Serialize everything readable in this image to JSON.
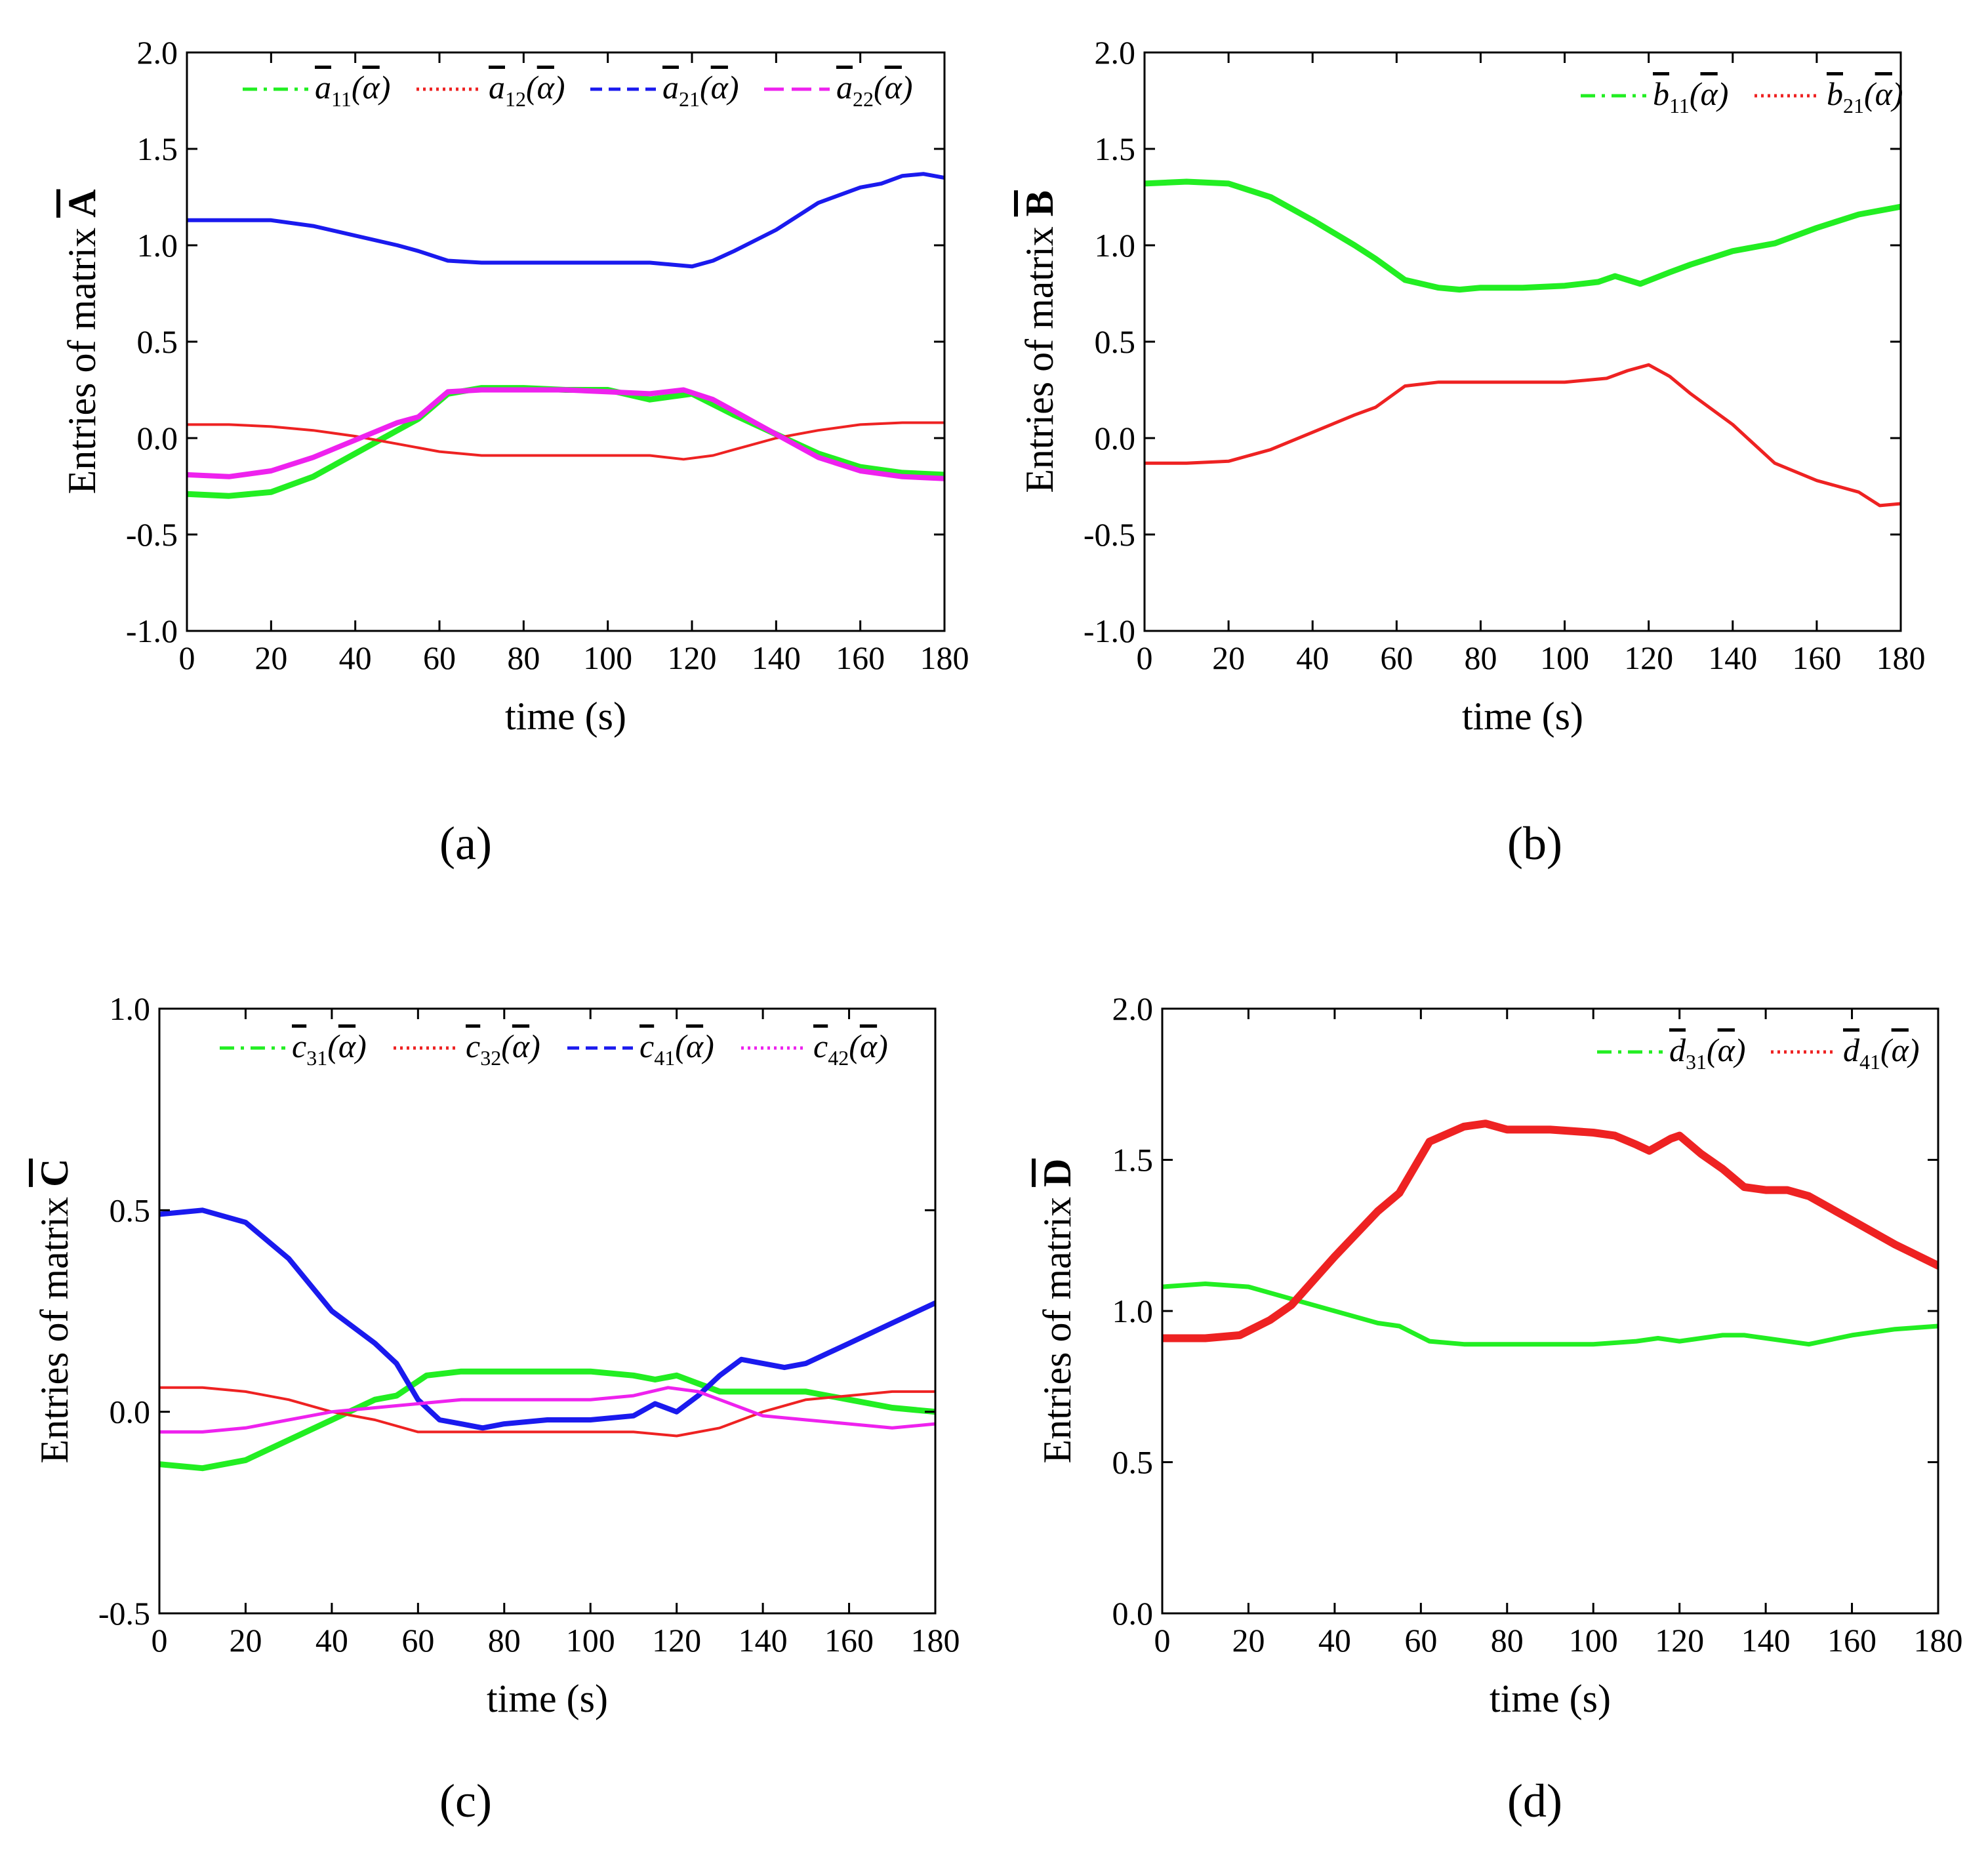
{
  "figure": {
    "panels": [
      "(a)",
      "(b)",
      "(c)",
      "(d)"
    ]
  },
  "colors": {
    "green": "#22ee22",
    "red": "#ee2222",
    "blue": "#1a1aee",
    "magenta": "#ee22ee"
  },
  "chart_data": [
    {
      "id": "a",
      "type": "line",
      "panel_label": "(a)",
      "xlabel": "time (s)",
      "ylabel": "Entries of matrix A",
      "ylabel_prefix": "Entries of matrix ",
      "ylabel_matrix": "A",
      "xlim": [
        0,
        180
      ],
      "ylim": [
        -1.0,
        2.0
      ],
      "xticks": [
        0,
        20,
        40,
        60,
        80,
        100,
        120,
        140,
        160,
        180
      ],
      "yticks": [
        -1.0,
        -0.5,
        0.0,
        0.5,
        1.0,
        1.5,
        2.0
      ],
      "ytick_labels": [
        "-1.0",
        "-0.5",
        "0.0",
        "0.5",
        "1.0",
        "1.5",
        "2.0"
      ],
      "legend_position": "top",
      "series": [
        {
          "name": "a11(α)",
          "sym": "a",
          "sub": "11",
          "color": "green",
          "dash": "dashdot",
          "width": 9,
          "x": [
            0,
            10,
            20,
            30,
            40,
            50,
            55,
            62,
            70,
            80,
            90,
            100,
            110,
            120,
            130,
            140,
            150,
            160,
            170,
            180
          ],
          "y": [
            -0.29,
            -0.3,
            -0.28,
            -0.2,
            -0.08,
            0.04,
            0.1,
            0.23,
            0.26,
            0.26,
            0.25,
            0.25,
            0.2,
            0.23,
            0.12,
            0.02,
            -0.08,
            -0.15,
            -0.18,
            -0.19
          ]
        },
        {
          "name": "a12(α)",
          "sym": "a",
          "sub": "12",
          "color": "red",
          "dash": "dot",
          "width": 4,
          "x": [
            0,
            10,
            20,
            30,
            40,
            50,
            60,
            70,
            80,
            90,
            100,
            110,
            118,
            125,
            130,
            140,
            150,
            160,
            170,
            180
          ],
          "y": [
            0.07,
            0.07,
            0.06,
            0.04,
            0.01,
            -0.03,
            -0.07,
            -0.09,
            -0.09,
            -0.09,
            -0.09,
            -0.09,
            -0.11,
            -0.09,
            -0.06,
            0.0,
            0.04,
            0.07,
            0.08,
            0.08
          ]
        },
        {
          "name": "a21(α)",
          "sym": "a",
          "sub": "21",
          "color": "blue",
          "dash": "dash",
          "width": 6,
          "x": [
            0,
            10,
            20,
            30,
            40,
            50,
            55,
            62,
            70,
            80,
            90,
            100,
            110,
            115,
            120,
            125,
            130,
            140,
            150,
            160,
            165,
            170,
            175,
            180
          ],
          "y": [
            1.13,
            1.13,
            1.13,
            1.1,
            1.05,
            1.0,
            0.97,
            0.92,
            0.91,
            0.91,
            0.91,
            0.91,
            0.91,
            0.9,
            0.89,
            0.92,
            0.97,
            1.08,
            1.22,
            1.3,
            1.32,
            1.36,
            1.37,
            1.35
          ]
        },
        {
          "name": "a22(α)",
          "sym": "a",
          "sub": "22",
          "color": "magenta",
          "dash": "longdash",
          "width": 8,
          "x": [
            0,
            10,
            20,
            30,
            40,
            50,
            55,
            62,
            70,
            80,
            90,
            100,
            110,
            118,
            125,
            130,
            140,
            150,
            160,
            170,
            180
          ],
          "y": [
            -0.19,
            -0.2,
            -0.17,
            -0.1,
            -0.01,
            0.08,
            0.11,
            0.24,
            0.25,
            0.25,
            0.25,
            0.24,
            0.23,
            0.25,
            0.2,
            0.14,
            0.02,
            -0.1,
            -0.17,
            -0.2,
            -0.21
          ]
        }
      ]
    },
    {
      "id": "b",
      "type": "line",
      "panel_label": "(b)",
      "xlabel": "time (s)",
      "ylabel": "Entries of matrix B",
      "ylabel_prefix": "Entries of matrix ",
      "ylabel_matrix": "B",
      "xlim": [
        0,
        180
      ],
      "ylim": [
        -1.0,
        2.0
      ],
      "xticks": [
        0,
        20,
        40,
        60,
        80,
        100,
        120,
        140,
        160,
        180
      ],
      "yticks": [
        -1.0,
        -0.5,
        0.0,
        0.5,
        1.0,
        1.5,
        2.0
      ],
      "ytick_labels": [
        "-1.0",
        "-0.5",
        "0.0",
        "0.5",
        "1.0",
        "1.5",
        "2.0"
      ],
      "legend_position": "top-right",
      "series": [
        {
          "name": "b11(α)",
          "sym": "b",
          "sub": "11",
          "color": "green",
          "dash": "dashdot",
          "width": 9,
          "x": [
            0,
            10,
            20,
            30,
            40,
            50,
            55,
            62,
            70,
            75,
            80,
            90,
            100,
            108,
            112,
            118,
            125,
            130,
            140,
            150,
            160,
            170,
            180
          ],
          "y": [
            1.32,
            1.33,
            1.32,
            1.25,
            1.13,
            1.0,
            0.93,
            0.82,
            0.78,
            0.77,
            0.78,
            0.78,
            0.79,
            0.81,
            0.84,
            0.8,
            0.86,
            0.9,
            0.97,
            1.01,
            1.09,
            1.16,
            1.2
          ]
        },
        {
          "name": "b21(α)",
          "sym": "b",
          "sub": "21",
          "color": "red",
          "dash": "dot",
          "width": 5,
          "x": [
            0,
            10,
            20,
            30,
            40,
            50,
            55,
            62,
            70,
            80,
            90,
            100,
            110,
            115,
            120,
            125,
            130,
            140,
            150,
            160,
            170,
            175,
            180
          ],
          "y": [
            -0.13,
            -0.13,
            -0.12,
            -0.06,
            0.03,
            0.12,
            0.16,
            0.27,
            0.29,
            0.29,
            0.29,
            0.29,
            0.31,
            0.35,
            0.38,
            0.32,
            0.23,
            0.07,
            -0.13,
            -0.22,
            -0.28,
            -0.35,
            -0.34
          ]
        }
      ]
    },
    {
      "id": "c",
      "type": "line",
      "panel_label": "(c)",
      "xlabel": "time (s)",
      "ylabel": "Entries of matrix C",
      "ylabel_prefix": "Entries of matrix ",
      "ylabel_matrix": "C",
      "xlim": [
        0,
        180
      ],
      "ylim": [
        -0.5,
        1.0
      ],
      "xticks": [
        0,
        20,
        40,
        60,
        80,
        100,
        120,
        140,
        160,
        180
      ],
      "yticks": [
        -0.5,
        0.0,
        0.5,
        1.0
      ],
      "ytick_labels": [
        "-0.5",
        "0.0",
        "0.5",
        "1.0"
      ],
      "legend_position": "top",
      "series": [
        {
          "name": "c31(α)",
          "sym": "c",
          "sub": "31",
          "color": "green",
          "dash": "dashdot",
          "width": 9,
          "x": [
            0,
            10,
            20,
            30,
            40,
            50,
            55,
            62,
            70,
            80,
            90,
            100,
            110,
            115,
            120,
            125,
            130,
            140,
            150,
            160,
            170,
            180
          ],
          "y": [
            -0.13,
            -0.14,
            -0.12,
            -0.07,
            -0.02,
            0.03,
            0.04,
            0.09,
            0.1,
            0.1,
            0.1,
            0.1,
            0.09,
            0.08,
            0.09,
            0.07,
            0.05,
            0.05,
            0.05,
            0.03,
            0.01,
            0.0
          ]
        },
        {
          "name": "c32(α)",
          "sym": "c",
          "sub": "32",
          "color": "red",
          "dash": "dot",
          "width": 4,
          "x": [
            0,
            10,
            20,
            30,
            40,
            50,
            60,
            70,
            80,
            90,
            100,
            110,
            120,
            130,
            140,
            150,
            160,
            170,
            180
          ],
          "y": [
            0.06,
            0.06,
            0.05,
            0.03,
            0.0,
            -0.02,
            -0.05,
            -0.05,
            -0.05,
            -0.05,
            -0.05,
            -0.05,
            -0.06,
            -0.04,
            0.0,
            0.03,
            0.04,
            0.05,
            0.05
          ]
        },
        {
          "name": "c41(α)",
          "sym": "c",
          "sub": "41",
          "color": "blue",
          "dash": "dash",
          "width": 8,
          "x": [
            0,
            10,
            20,
            30,
            40,
            50,
            55,
            60,
            65,
            70,
            75,
            80,
            90,
            100,
            110,
            115,
            120,
            125,
            130,
            135,
            140,
            145,
            150,
            160,
            170,
            180
          ],
          "y": [
            0.49,
            0.5,
            0.47,
            0.38,
            0.25,
            0.17,
            0.12,
            0.03,
            -0.02,
            -0.03,
            -0.04,
            -0.03,
            -0.02,
            -0.02,
            -0.01,
            0.02,
            0.0,
            0.04,
            0.09,
            0.13,
            0.12,
            0.11,
            0.12,
            0.17,
            0.22,
            0.27
          ]
        },
        {
          "name": "c42(α)",
          "sym": "c",
          "sub": "42",
          "color": "magenta",
          "dash": "dot",
          "width": 5,
          "x": [
            0,
            10,
            20,
            30,
            40,
            50,
            60,
            70,
            80,
            90,
            100,
            110,
            118,
            125,
            130,
            140,
            150,
            160,
            170,
            180
          ],
          "y": [
            -0.05,
            -0.05,
            -0.04,
            -0.02,
            0.0,
            0.01,
            0.02,
            0.03,
            0.03,
            0.03,
            0.03,
            0.04,
            0.06,
            0.05,
            0.03,
            -0.01,
            -0.02,
            -0.03,
            -0.04,
            -0.03
          ]
        }
      ]
    },
    {
      "id": "d",
      "type": "line",
      "panel_label": "(d)",
      "xlabel": "time (s)",
      "ylabel": "Entries of matrix D",
      "ylabel_prefix": "Entries of matrix ",
      "ylabel_matrix": "D",
      "xlim": [
        0,
        180
      ],
      "ylim": [
        0.0,
        2.0
      ],
      "xticks": [
        0,
        20,
        40,
        60,
        80,
        100,
        120,
        140,
        160,
        180
      ],
      "yticks": [
        0.0,
        0.5,
        1.0,
        1.5,
        2.0
      ],
      "ytick_labels": [
        "0.0",
        "0.5",
        "1.0",
        "1.5",
        "2.0"
      ],
      "legend_position": "top-right",
      "series": [
        {
          "name": "d31(α)",
          "sym": "d",
          "sub": "31",
          "color": "green",
          "dash": "dashdot",
          "width": 7,
          "x": [
            0,
            10,
            20,
            30,
            40,
            50,
            55,
            62,
            70,
            80,
            90,
            100,
            110,
            115,
            120,
            125,
            130,
            135,
            140,
            150,
            160,
            170,
            180
          ],
          "y": [
            1.08,
            1.09,
            1.08,
            1.04,
            1.0,
            0.96,
            0.95,
            0.9,
            0.89,
            0.89,
            0.89,
            0.89,
            0.9,
            0.91,
            0.9,
            0.91,
            0.92,
            0.92,
            0.91,
            0.89,
            0.92,
            0.94,
            0.95
          ]
        },
        {
          "name": "d41(α)",
          "sym": "d",
          "sub": "41",
          "color": "red",
          "dash": "dot",
          "width": 12,
          "x": [
            0,
            10,
            18,
            25,
            30,
            40,
            50,
            55,
            62,
            70,
            75,
            80,
            90,
            100,
            105,
            110,
            113,
            118,
            120,
            125,
            130,
            135,
            140,
            145,
            150,
            160,
            170,
            180
          ],
          "y": [
            0.91,
            0.91,
            0.92,
            0.97,
            1.02,
            1.18,
            1.33,
            1.39,
            1.56,
            1.61,
            1.62,
            1.6,
            1.6,
            1.59,
            1.58,
            1.55,
            1.53,
            1.57,
            1.58,
            1.52,
            1.47,
            1.41,
            1.4,
            1.4,
            1.38,
            1.3,
            1.22,
            1.15
          ]
        }
      ]
    }
  ]
}
